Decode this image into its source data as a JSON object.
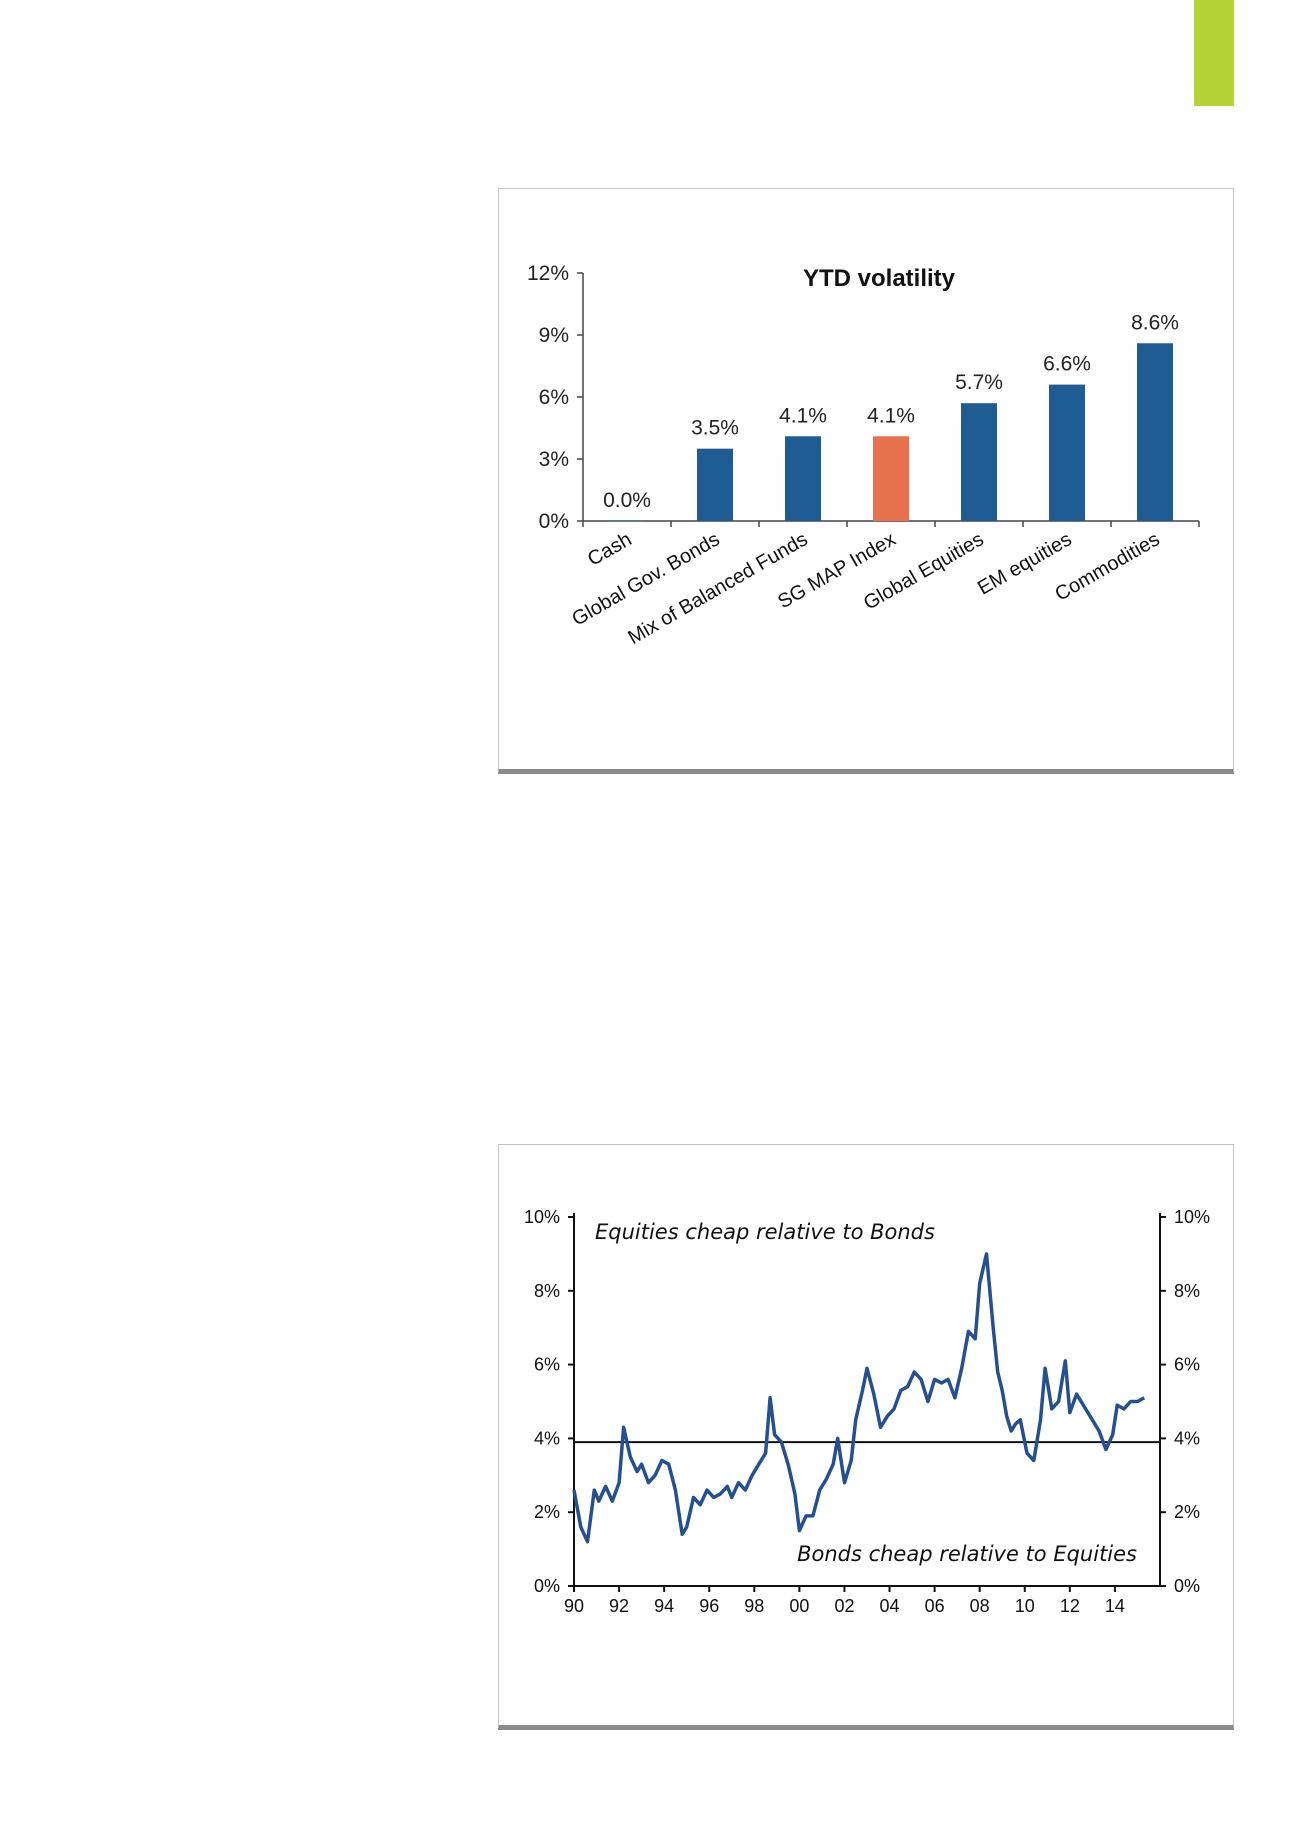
{
  "accent_tab_color": "#b5d334",
  "chart_data": [
    {
      "type": "bar",
      "title": "YTD volatility",
      "categories": [
        "Cash",
        "Global Gov. Bonds",
        "Mix of Balanced Funds",
        "SG MAP Index",
        "Global Equities",
        "EM equities",
        "Commodities"
      ],
      "values": [
        0.0,
        3.5,
        4.1,
        4.1,
        5.7,
        6.6,
        8.6
      ],
      "value_labels": [
        "0.0%",
        "3.5%",
        "4.1%",
        "4.1%",
        "5.7%",
        "6.6%",
        "8.6%"
      ],
      "colors": [
        "#1f5c93",
        "#1f5c93",
        "#1f5c93",
        "#e8714d",
        "#1f5c93",
        "#1f5c93",
        "#1f5c93"
      ],
      "ylim": [
        0,
        12
      ],
      "yticks": [
        0,
        3,
        6,
        9,
        12
      ],
      "ytick_labels": [
        "0%",
        "3%",
        "6%",
        "9%",
        "12%"
      ],
      "grid": false
    },
    {
      "type": "line",
      "x_tick_labels": [
        "90",
        "92",
        "94",
        "96",
        "98",
        "00",
        "02",
        "04",
        "06",
        "08",
        "10",
        "12",
        "14"
      ],
      "x_ticks": [
        1990,
        1992,
        1994,
        1996,
        1998,
        2000,
        2002,
        2004,
        2006,
        2008,
        2010,
        2012,
        2014
      ],
      "xlim": [
        1990,
        2016
      ],
      "ylim": [
        0,
        10
      ],
      "yticks": [
        0,
        2,
        4,
        6,
        8,
        10
      ],
      "ytick_labels": [
        "0%",
        "2%",
        "4%",
        "6%",
        "8%",
        "10%"
      ],
      "reference_line": 3.9,
      "annotations": [
        "Equities cheap relative to Bonds",
        "Bonds cheap relative to Equities"
      ],
      "line_color": "#25508f",
      "grid": false,
      "series": [
        {
          "x": [
            1990.0,
            1990.3,
            1990.6,
            1990.9,
            1991.1,
            1991.4,
            1991.7,
            1992.0,
            1992.2,
            1992.5,
            1992.8,
            1993.0,
            1993.3,
            1993.6,
            1993.9,
            1994.2,
            1994.5,
            1994.8,
            1995.0,
            1995.3,
            1995.6,
            1995.9,
            1996.2,
            1996.5,
            1996.8,
            1997.0,
            1997.3,
            1997.6,
            1997.9,
            1998.2,
            1998.5,
            1998.7,
            1998.9,
            1999.2,
            1999.5,
            1999.8,
            2000.0,
            2000.3,
            2000.6,
            2000.9,
            2001.2,
            2001.5,
            2001.7,
            2002.0,
            2002.3,
            2002.5,
            2002.8,
            2003.0,
            2003.3,
            2003.6,
            2003.9,
            2004.2,
            2004.5,
            2004.8,
            2005.1,
            2005.4,
            2005.7,
            2006.0,
            2006.3,
            2006.6,
            2006.9,
            2007.2,
            2007.5,
            2007.8,
            2008.0,
            2008.3,
            2008.6,
            2008.8,
            2009.0,
            2009.2,
            2009.4,
            2009.6,
            2009.8,
            2010.1,
            2010.4,
            2010.7,
            2010.9,
            2011.2,
            2011.5,
            2011.8,
            2012.0,
            2012.3,
            2012.5,
            2012.7,
            2013.0,
            2013.3,
            2013.6,
            2013.9,
            2014.1,
            2014.4,
            2014.7,
            2015.0,
            2015.3
          ],
          "values": [
            2.6,
            1.6,
            1.2,
            2.6,
            2.3,
            2.7,
            2.3,
            2.8,
            4.3,
            3.5,
            3.1,
            3.3,
            2.8,
            3.0,
            3.4,
            3.3,
            2.6,
            1.4,
            1.6,
            2.4,
            2.2,
            2.6,
            2.4,
            2.5,
            2.7,
            2.4,
            2.8,
            2.6,
            3.0,
            3.3,
            3.6,
            5.1,
            4.1,
            3.9,
            3.3,
            2.5,
            1.5,
            1.9,
            1.9,
            2.6,
            2.9,
            3.3,
            4.0,
            2.8,
            3.4,
            4.5,
            5.3,
            5.9,
            5.2,
            4.3,
            4.6,
            4.8,
            5.3,
            5.4,
            5.8,
            5.6,
            5.0,
            5.6,
            5.5,
            5.6,
            5.1,
            5.9,
            6.9,
            6.7,
            8.2,
            9.0,
            7.0,
            5.8,
            5.3,
            4.6,
            4.2,
            4.4,
            4.5,
            3.6,
            3.4,
            4.5,
            5.9,
            4.8,
            5.0,
            6.1,
            4.7,
            5.2,
            5.0,
            4.8,
            4.5,
            4.2,
            3.7,
            4.1,
            4.9,
            4.8,
            5.0,
            5.0,
            5.1
          ]
        }
      ]
    }
  ]
}
